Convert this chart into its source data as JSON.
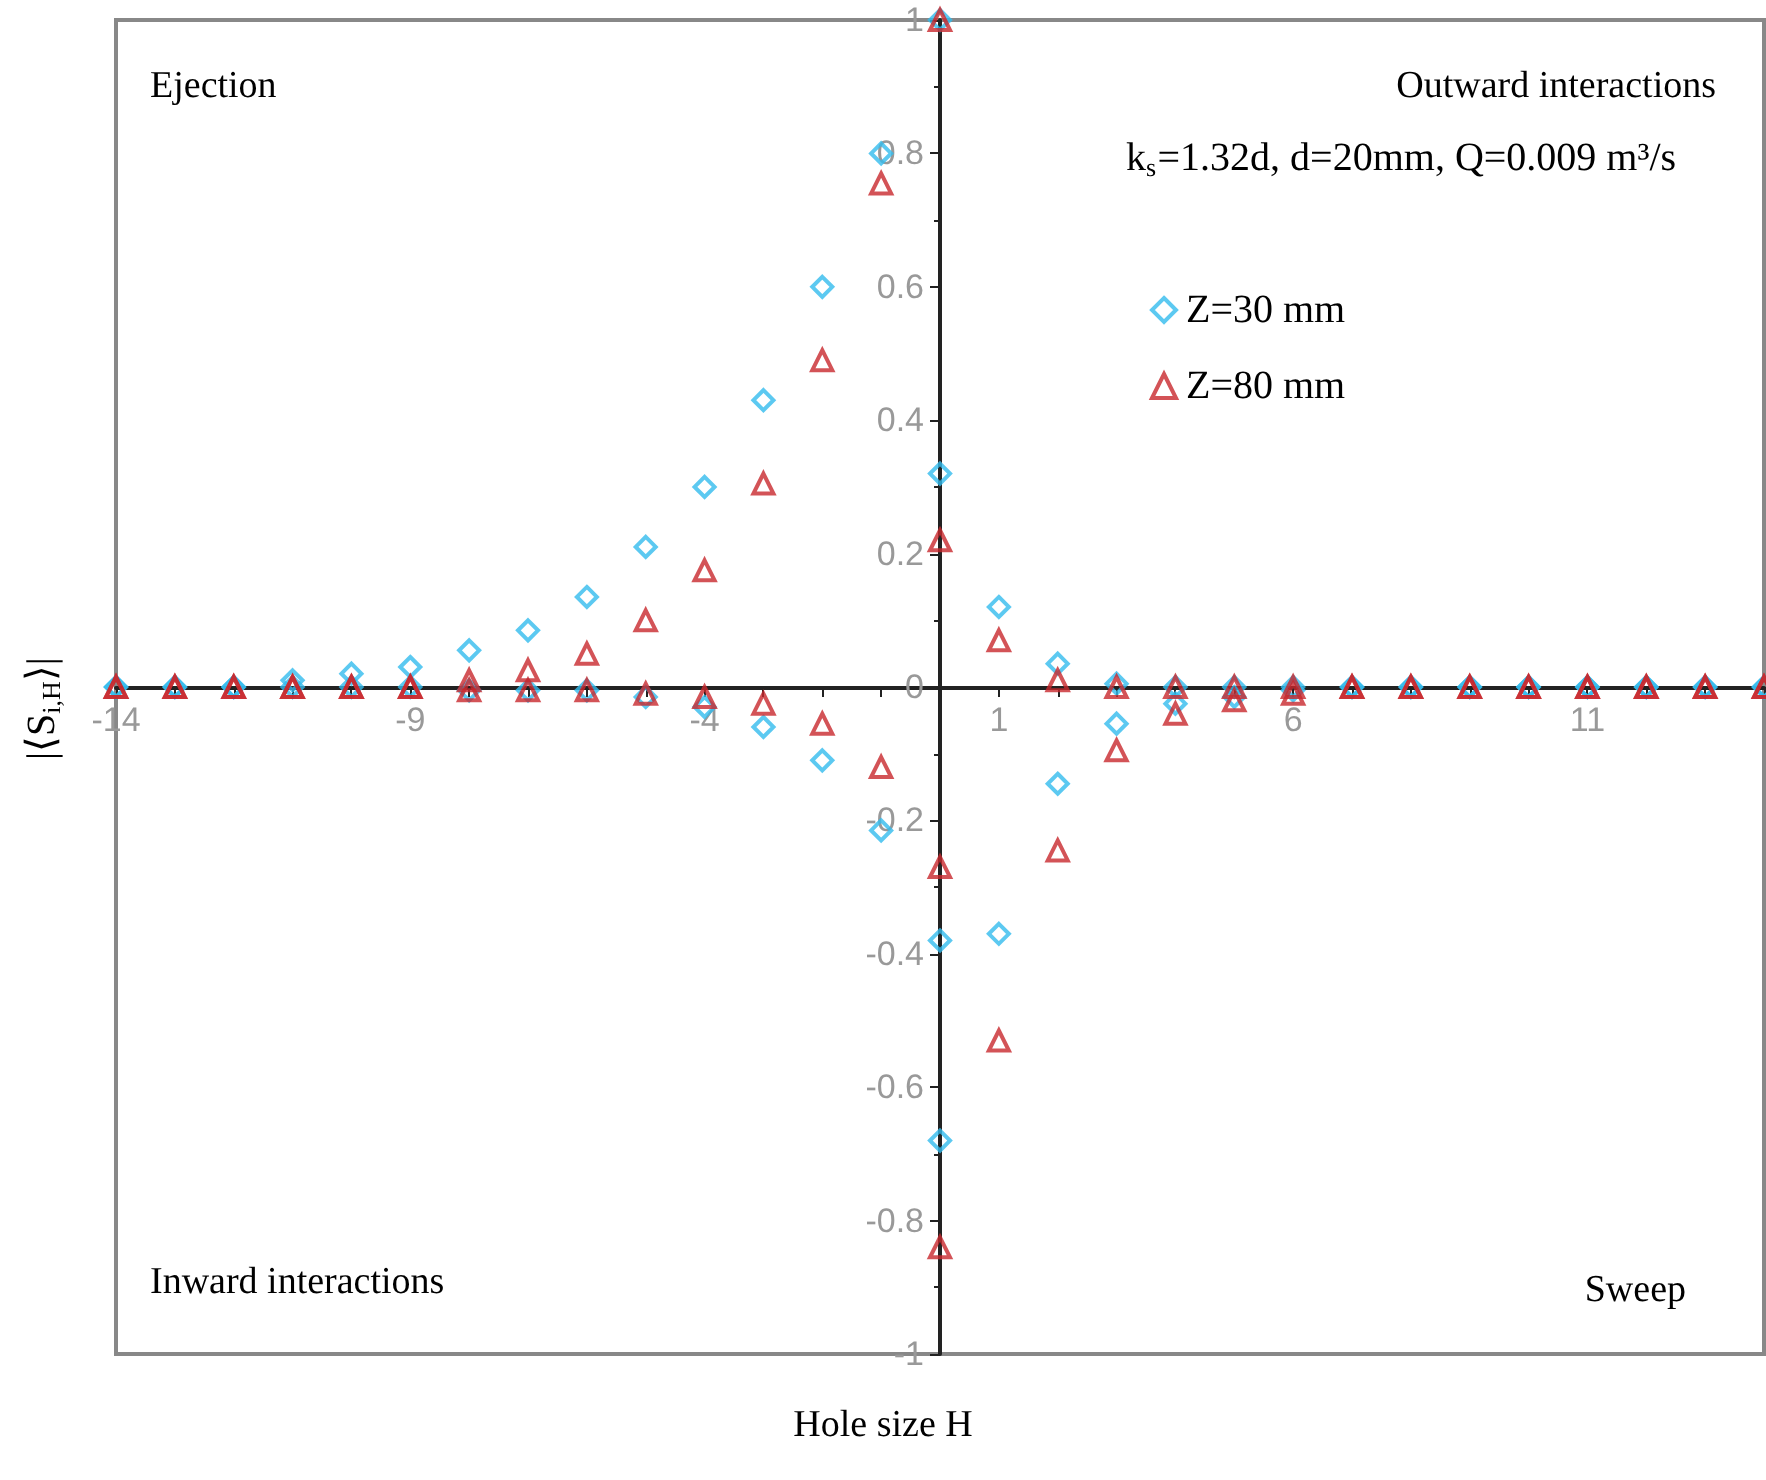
{
  "chart_data": {
    "type": "scatter",
    "xlabel": "Hole size H",
    "ylabel": "|⟨S$_{i,H}$⟩|",
    "annotations": [
      "Ejection",
      "Outward interactions",
      "Inward interactions",
      "Sweep",
      "k$_{s}$=1.32d, d=20mm, Q=0.009 m³/s"
    ],
    "xlim": [
      -14,
      14
    ],
    "xticks": [
      -14,
      -9,
      -4,
      1,
      6,
      11
    ],
    "ylim": [
      -1,
      1
    ],
    "yticks": [
      -1,
      -0.8,
      -0.6,
      -0.4,
      -0.2,
      0,
      0.2,
      0.4,
      0.6,
      0.8,
      1
    ],
    "legend": "top right",
    "series": [
      {
        "name": "Z=30 mm",
        "color": "#33bbee",
        "marker": "diamond",
        "x": [
          -14,
          -13,
          -12,
          -11,
          -10,
          -9,
          -8,
          -7,
          -6,
          -5,
          -4,
          -3,
          -2,
          -1,
          0,
          0,
          1,
          2,
          3,
          4,
          5,
          6,
          7,
          8,
          9,
          10,
          11,
          12,
          13,
          14,
          -14,
          -13,
          -12,
          -11,
          -10,
          -9,
          -8,
          -7,
          -6,
          -5,
          -4,
          -3,
          -2,
          -1,
          0,
          0,
          1,
          2,
          3,
          4,
          5,
          6,
          7,
          8,
          9,
          10,
          11,
          12,
          13,
          14
        ],
        "values": [
          0,
          0,
          0,
          0.01,
          0.02,
          0.03,
          0.055,
          0.085,
          0.135,
          0.21,
          0.3,
          0.43,
          0.6,
          0.8,
          1,
          0.32,
          0.12,
          0.035,
          0.005,
          0,
          0,
          0,
          0,
          0,
          0,
          0,
          0,
          0,
          0,
          0,
          0,
          0,
          0,
          0,
          0,
          0,
          -0.005,
          -0.005,
          -0.005,
          -0.015,
          -0.03,
          -0.06,
          -0.11,
          -0.215,
          -0.68,
          -0.38,
          -0.37,
          -0.145,
          -0.055,
          -0.025,
          -0.015,
          -0.005,
          0,
          0,
          0,
          0,
          0,
          0,
          0,
          0
        ]
      },
      {
        "name": "Z=80 mm",
        "color": "#c8282d",
        "marker": "triangle",
        "x": [
          -14,
          -13,
          -12,
          -11,
          -10,
          -9,
          -8,
          -7,
          -6,
          -5,
          -4,
          -3,
          -2,
          -1,
          0,
          0,
          1,
          2,
          3,
          4,
          5,
          6,
          7,
          8,
          9,
          10,
          11,
          12,
          13,
          14,
          -14,
          -13,
          -12,
          -11,
          -10,
          -9,
          -8,
          -7,
          -6,
          -5,
          -4,
          -3,
          -2,
          -1,
          0,
          0,
          1,
          2,
          3,
          4,
          5,
          6,
          7,
          8,
          9,
          10,
          11,
          12,
          13,
          14
        ],
        "values": [
          0,
          0,
          0,
          0,
          0,
          0,
          0.01,
          0.025,
          0.05,
          0.1,
          0.175,
          0.305,
          0.49,
          0.755,
          1,
          0.22,
          0.07,
          0.01,
          0,
          0,
          0,
          0,
          0,
          0,
          0,
          0,
          0,
          0,
          0,
          0,
          0,
          0,
          0,
          0,
          0,
          0,
          -0.005,
          -0.005,
          -0.005,
          -0.01,
          -0.015,
          -0.025,
          -0.055,
          -0.12,
          -0.84,
          -0.27,
          -0.53,
          -0.245,
          -0.095,
          -0.04,
          -0.02,
          -0.01,
          0,
          0,
          0,
          0,
          0,
          0,
          0,
          0
        ]
      }
    ]
  }
}
